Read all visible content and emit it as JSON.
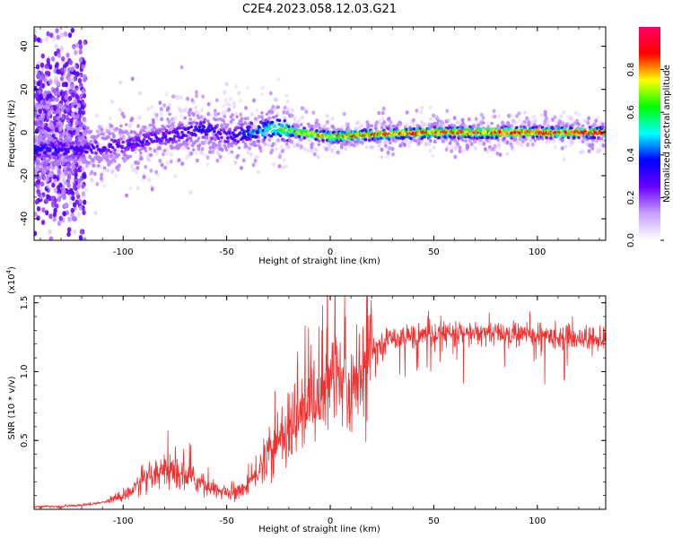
{
  "figure": {
    "title": "C2E4.2023.058.12.03.G21"
  },
  "chart_data": [
    {
      "type": "heatmap",
      "title": "",
      "xlabel": "Height of straight line (km)",
      "ylabel": "Frequency (Hz)",
      "xlim": [
        -143,
        133
      ],
      "ylim": [
        -50,
        49
      ],
      "x_ticks": [
        -100,
        -50,
        0,
        50,
        100
      ],
      "x_tick_labels": [
        "-100",
        "-50",
        "0",
        "50",
        "100"
      ],
      "y_ticks": [
        -40,
        -20,
        0,
        20,
        40
      ],
      "y_tick_labels": [
        "-40",
        "-20",
        "0",
        "20",
        "40"
      ],
      "colorbar": {
        "label": "Normalized spectral amplitude",
        "range": [
          0,
          1
        ],
        "ticks": [
          0.0,
          0.2,
          0.4,
          0.6,
          0.8
        ],
        "tick_labels": [
          "0.0",
          "0.2",
          "0.4",
          "0.6",
          "0.8"
        ],
        "colormap": [
          "#ffffff",
          "#c8a0ff",
          "#6a00ff",
          "#0000ff",
          "#00ffff",
          "#00ff00",
          "#ffff00",
          "#ff0000",
          "#ff0066"
        ]
      },
      "ridge": [
        {
          "x": -140,
          "y": -8,
          "amp": 0.35
        },
        {
          "x": -120,
          "y": -8,
          "amp": 0.3
        },
        {
          "x": -100,
          "y": -6,
          "amp": 0.3
        },
        {
          "x": -80,
          "y": -2,
          "amp": 0.3
        },
        {
          "x": -60,
          "y": 2,
          "amp": 0.35
        },
        {
          "x": -50,
          "y": -2,
          "amp": 0.3
        },
        {
          "x": -40,
          "y": 0,
          "amp": 0.4
        },
        {
          "x": -25,
          "y": 2,
          "amp": 0.6
        },
        {
          "x": -15,
          "y": 0,
          "amp": 0.75
        },
        {
          "x": 0,
          "y": -2,
          "amp": 0.8
        },
        {
          "x": 20,
          "y": -1,
          "amp": 0.85
        },
        {
          "x": 50,
          "y": 0,
          "amp": 0.85
        },
        {
          "x": 80,
          "y": 0,
          "amp": 0.9
        },
        {
          "x": 110,
          "y": 0,
          "amp": 0.9
        },
        {
          "x": 133,
          "y": 0,
          "amp": 0.9
        }
      ]
    },
    {
      "type": "line",
      "title": "",
      "xlabel": "Height of straight line (km)",
      "ylabel": "SNR (10 * v/v)",
      "y_multiplier_label": "(x10",
      "y_multiplier_exp": "4",
      "y_multiplier_close": ")",
      "xlim": [
        -143,
        133
      ],
      "ylim": [
        0,
        1.55
      ],
      "x_ticks": [
        -100,
        -50,
        0,
        50,
        100
      ],
      "x_tick_labels": [
        "-100",
        "-50",
        "0",
        "50",
        "100"
      ],
      "y_ticks": [
        0.5,
        1.0,
        1.5
      ],
      "y_tick_labels": [
        "0.5",
        "1.0",
        "1.5"
      ],
      "series": [
        {
          "color": "#ee3333",
          "envelope": [
            {
              "x": -143,
              "y": 0.02
            },
            {
              "x": -130,
              "y": 0.02
            },
            {
              "x": -120,
              "y": 0.03
            },
            {
              "x": -110,
              "y": 0.05
            },
            {
              "x": -100,
              "y": 0.1
            },
            {
              "x": -90,
              "y": 0.2
            },
            {
              "x": -80,
              "y": 0.26
            },
            {
              "x": -70,
              "y": 0.25
            },
            {
              "x": -60,
              "y": 0.17
            },
            {
              "x": -50,
              "y": 0.11
            },
            {
              "x": -45,
              "y": 0.12
            },
            {
              "x": -40,
              "y": 0.17
            },
            {
              "x": -30,
              "y": 0.38
            },
            {
              "x": -20,
              "y": 0.58
            },
            {
              "x": -12,
              "y": 0.73
            },
            {
              "x": -5,
              "y": 0.85
            },
            {
              "x": 2,
              "y": 0.95
            },
            {
              "x": 7,
              "y": 0.88
            },
            {
              "x": 10,
              "y": 0.8
            },
            {
              "x": 15,
              "y": 1.05
            },
            {
              "x": 20,
              "y": 1.16
            },
            {
              "x": 30,
              "y": 1.25
            },
            {
              "x": 50,
              "y": 1.27
            },
            {
              "x": 70,
              "y": 1.28
            },
            {
              "x": 100,
              "y": 1.27
            },
            {
              "x": 133,
              "y": 1.23
            }
          ]
        }
      ]
    }
  ]
}
